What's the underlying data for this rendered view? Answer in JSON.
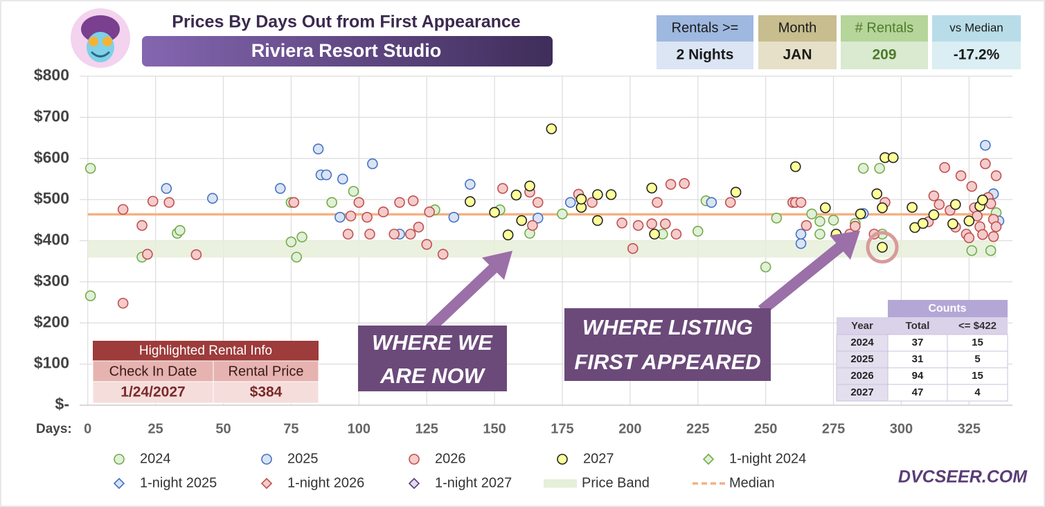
{
  "chart_data": {
    "type": "scatter",
    "title": "Prices By Days Out from First Appearance",
    "subtitle": "Riviera Resort Studio",
    "x_label": "Days:",
    "xlim": [
      -3,
      341
    ],
    "ylim": [
      0,
      800
    ],
    "xticks": [
      0,
      25,
      50,
      75,
      100,
      125,
      150,
      175,
      200,
      225,
      250,
      275,
      300,
      325
    ],
    "yticks": [
      {
        "value": 0,
        "label": "$-"
      },
      {
        "value": 100,
        "label": "$100"
      },
      {
        "value": 200,
        "label": "$200"
      },
      {
        "value": 300,
        "label": "$300"
      },
      {
        "value": 400,
        "label": "$400"
      },
      {
        "value": 500,
        "label": "$500"
      },
      {
        "value": 600,
        "label": "$600"
      },
      {
        "value": 700,
        "label": "$700"
      },
      {
        "value": 800,
        "label": "$800"
      }
    ],
    "grid": true,
    "price_band": {
      "name": "Price Band",
      "range": [
        359,
        401
      ],
      "color": "#e6efd9"
    },
    "median": {
      "name": "Median",
      "value": 464,
      "color": "#f4b183"
    },
    "series": [
      {
        "name": "2024",
        "marker": "circle",
        "color": "#e2efd9",
        "edgecolor": "#70ad47",
        "x": [
          1,
          1,
          20,
          33,
          34,
          75,
          75,
          77,
          79,
          90,
          98,
          128,
          152,
          163,
          175,
          212,
          225,
          228,
          250,
          254,
          267,
          270,
          270,
          275,
          283,
          286,
          292,
          293,
          326,
          333,
          335
        ],
        "values": [
          576,
          266,
          360,
          418,
          425,
          397,
          493,
          360,
          409,
          493,
          520,
          475,
          475,
          418,
          465,
          416,
          423,
          497,
          336,
          455,
          465,
          447,
          416,
          450,
          442,
          576,
          576,
          416,
          376,
          376,
          468
        ]
      },
      {
        "name": "2025",
        "marker": "circle",
        "color": "#dae3f3",
        "edgecolor": "#4472c4",
        "x": [
          29,
          46,
          71,
          85,
          86,
          88,
          93,
          94,
          105,
          115,
          135,
          141,
          166,
          178,
          230,
          263,
          263,
          286,
          331,
          334,
          336
        ],
        "values": [
          527,
          503,
          527,
          623,
          560,
          560,
          457,
          550,
          587,
          416,
          457,
          537,
          455,
          493,
          493,
          393,
          416,
          466,
          632,
          514,
          448
        ]
      },
      {
        "name": "2026",
        "marker": "circle",
        "color": "#f4cccc",
        "edgecolor": "#c0504d",
        "x": [
          13,
          13,
          20,
          22,
          24,
          30,
          40,
          76,
          96,
          97,
          100,
          103,
          104,
          109,
          113,
          115,
          119,
          120,
          122,
          125,
          126,
          131,
          153,
          163,
          164,
          166,
          181,
          186,
          197,
          201,
          203,
          208,
          210,
          213,
          215,
          217,
          220,
          237,
          260,
          261,
          263,
          265,
          281,
          283,
          294,
          290,
          310,
          312,
          314,
          316,
          318,
          320,
          322,
          324,
          325,
          326,
          327,
          328,
          329,
          330,
          331,
          332,
          333,
          334,
          334,
          335,
          335
        ],
        "values": [
          476,
          248,
          437,
          367,
          496,
          493,
          366,
          493,
          416,
          460,
          493,
          457,
          416,
          470,
          416,
          493,
          416,
          497,
          433,
          391,
          470,
          367,
          527,
          518,
          437,
          493,
          513,
          493,
          443,
          381,
          437,
          441,
          493,
          441,
          537,
          416,
          539,
          493,
          493,
          493,
          493,
          437,
          416,
          435,
          493,
          416,
          446,
          509,
          488,
          578,
          474,
          433,
          558,
          416,
          407,
          532,
          480,
          460,
          434,
          415,
          587,
          505,
          490,
          410,
          452,
          558,
          434
        ]
      },
      {
        "name": "2027",
        "marker": "circle",
        "color": "#ffff99",
        "edgecolor": "#222222",
        "x": [
          141,
          150,
          155,
          158,
          160,
          163,
          171,
          182,
          182,
          188,
          188,
          193,
          208,
          209,
          239,
          261,
          272,
          276,
          285,
          291,
          293,
          293,
          294,
          297,
          304,
          305,
          308,
          312,
          319,
          320,
          325,
          329,
          330
        ],
        "values": [
          495,
          469,
          414,
          511,
          449,
          533,
          672,
          481,
          501,
          449,
          512,
          512,
          528,
          416,
          518,
          580,
          480,
          416,
          465,
          514,
          384,
          480,
          602,
          602,
          481,
          432,
          442,
          463,
          441,
          488,
          448,
          484,
          499
        ]
      },
      {
        "name": "1-night 2024",
        "marker": "diamond",
        "color": "#e2efd9",
        "edgecolor": "#70ad47",
        "x": [],
        "values": []
      },
      {
        "name": "1-night 2025",
        "marker": "diamond",
        "color": "#dae3f3",
        "edgecolor": "#4472c4",
        "x": [],
        "values": []
      },
      {
        "name": "1-night 2026",
        "marker": "diamond",
        "color": "#f4cccc",
        "edgecolor": "#c0504d",
        "x": [],
        "values": []
      },
      {
        "name": "1-night 2027",
        "marker": "diamond",
        "color": "#e4dcf0",
        "edgecolor": "#5b3d78",
        "x": [],
        "values": []
      }
    ],
    "highlight_marker": {
      "x": 293,
      "y": 384,
      "color": "#d99a9a"
    },
    "annotations": [
      [
        "WHERE WE",
        "ARE NOW"
      ],
      [
        "WHERE LISTING",
        "FIRST APPEARED"
      ]
    ]
  },
  "summary": [
    {
      "label": "Rentals >=",
      "value": "2 Nights"
    },
    {
      "label": "Month",
      "value": "JAN"
    },
    {
      "label": "# Rentals",
      "value": "209"
    },
    {
      "label": "vs Median",
      "value": "-17.2%"
    }
  ],
  "highlight": {
    "title": "Highlighted Rental Info",
    "headers": [
      "Check In Date",
      "Rental Price"
    ],
    "values": [
      "1/24/2027",
      "$384"
    ]
  },
  "counts": {
    "title": "Counts",
    "headers": [
      "Year",
      "Total",
      "<= $422"
    ],
    "rows": [
      [
        "2024",
        37,
        15
      ],
      [
        "2025",
        31,
        5
      ],
      [
        "2026",
        94,
        15
      ],
      [
        "2027",
        47,
        4
      ]
    ]
  },
  "brand": "DVCSEER.COM"
}
